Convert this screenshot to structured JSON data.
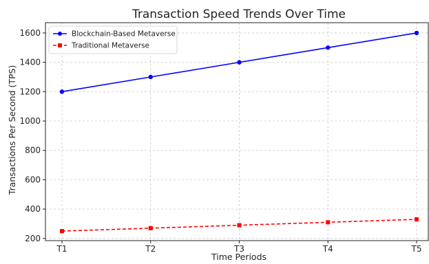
{
  "chart_data": {
    "type": "line",
    "title": "Transaction Speed Trends Over Time",
    "xlabel": "Time Periods",
    "ylabel": "Transactions Per Second (TPS)",
    "categories": [
      "T1",
      "T2",
      "T3",
      "T4",
      "T5"
    ],
    "ylim": [
      185,
      1670
    ],
    "yticks": [
      200,
      400,
      600,
      800,
      1000,
      1200,
      1400,
      1600
    ],
    "grid": true,
    "legend_position": "top-left",
    "series": [
      {
        "name": "Blockchain-Based Metaverse",
        "values": [
          1200,
          1300,
          1400,
          1500,
          1600
        ],
        "color": "#0000ff",
        "line_style": "solid",
        "marker": "circle"
      },
      {
        "name": "Traditional Metaverse",
        "values": [
          250,
          270,
          290,
          310,
          330
        ],
        "color": "#ff0000",
        "line_style": "dashed",
        "marker": "square"
      }
    ]
  }
}
